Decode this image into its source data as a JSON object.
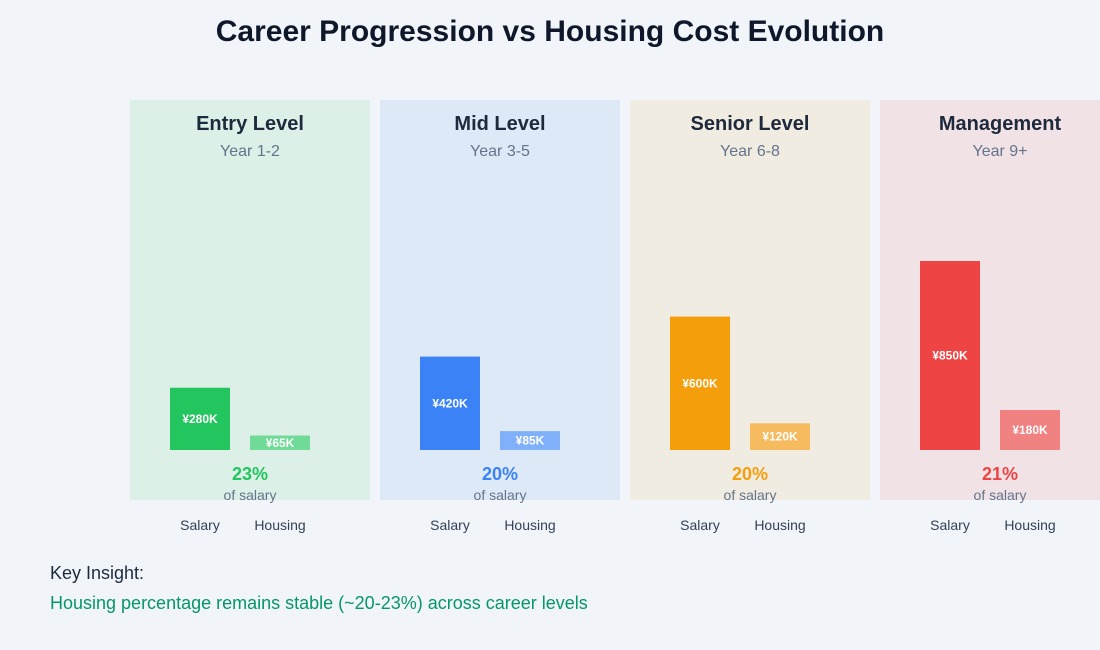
{
  "chart_data": {
    "type": "bar",
    "title": "Career Progression vs Housing Cost Evolution",
    "categories": [
      "Salary",
      "Housing"
    ],
    "ylim": [
      0,
      1000
    ],
    "unit": "¥K",
    "percent_suffix": "of salary",
    "panels": [
      {
        "name": "Entry Level",
        "years": "Year 1-2",
        "salary": 280,
        "housing": 65,
        "salary_label": "¥280K",
        "housing_label": "¥65K",
        "percent": "23%",
        "bg": "#dcf0e8",
        "color": "#22c55e",
        "light": "#6fdb97"
      },
      {
        "name": "Mid Level",
        "years": "Year 3-5",
        "salary": 420,
        "housing": 85,
        "salary_label": "¥420K",
        "housing_label": "¥85K",
        "percent": "20%",
        "bg": "#dee9f8",
        "color": "#3b82f6",
        "light": "#80b0fa"
      },
      {
        "name": "Senior Level",
        "years": "Year 6-8",
        "salary": 600,
        "housing": 120,
        "salary_label": "¥600K",
        "housing_label": "¥120K",
        "percent": "20%",
        "bg": "#f1ece2",
        "color": "#f59e0b",
        "light": "#f5bb5e"
      },
      {
        "name": "Management",
        "years": "Year 9+",
        "salary": 850,
        "housing": 180,
        "salary_label": "¥850K",
        "housing_label": "¥180K",
        "percent": "21%",
        "bg": "#f1e2e6",
        "color": "#ef4444",
        "light": "#f08282"
      }
    ]
  },
  "insight": {
    "title": "Key Insight:",
    "text": "Housing percentage remains stable (~20-23%) across career levels"
  }
}
